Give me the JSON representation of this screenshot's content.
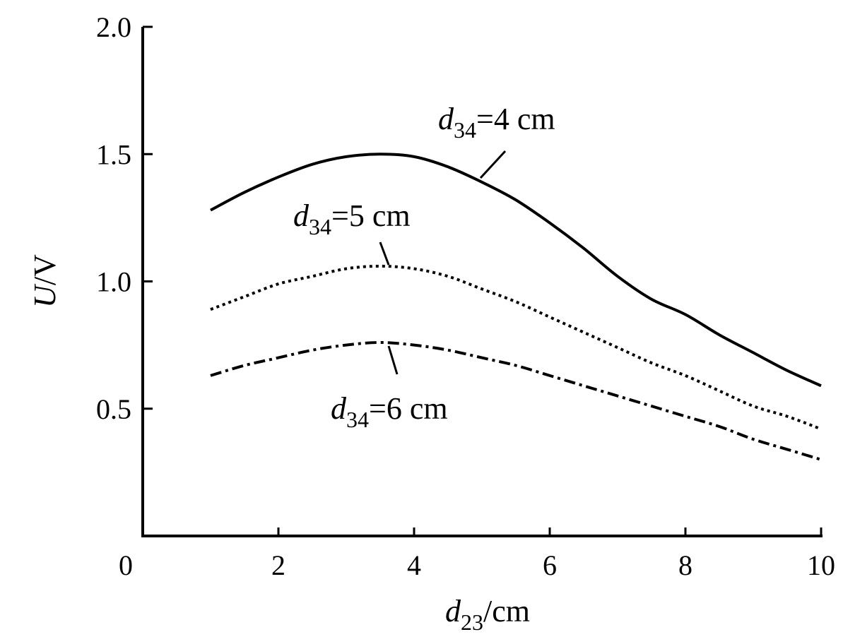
{
  "chart_data": {
    "type": "line",
    "xlabel": {
      "main": "d",
      "sub": "23",
      "unit": "/cm"
    },
    "ylabel": {
      "main": "U",
      "unit": "/V"
    },
    "xlim": [
      0,
      10
    ],
    "ylim": [
      0,
      2.0
    ],
    "x_ticks": [
      0,
      2,
      4,
      6,
      8,
      10
    ],
    "x_tick_labels": [
      "0",
      "2",
      "4",
      "6",
      "8",
      "10"
    ],
    "y_ticks": [
      0.5,
      1.0,
      1.5,
      2.0
    ],
    "y_tick_labels": [
      "0.5",
      "1.0",
      "1.5",
      "2.0"
    ],
    "grid": false,
    "x": [
      1.0,
      1.5,
      2.0,
      2.5,
      3.0,
      3.5,
      4.0,
      4.5,
      5.0,
      5.5,
      6.0,
      6.5,
      7.0,
      7.5,
      8.0,
      8.5,
      9.0,
      9.5,
      10.0
    ],
    "series": [
      {
        "name": "d34=4 cm",
        "style": "solid",
        "values": [
          1.28,
          1.35,
          1.41,
          1.46,
          1.49,
          1.5,
          1.49,
          1.45,
          1.39,
          1.32,
          1.23,
          1.13,
          1.02,
          0.93,
          0.87,
          0.79,
          0.72,
          0.65,
          0.59
        ]
      },
      {
        "name": "d34=5 cm",
        "style": "dotted",
        "values": [
          0.89,
          0.94,
          0.99,
          1.02,
          1.05,
          1.06,
          1.05,
          1.02,
          0.97,
          0.92,
          0.86,
          0.8,
          0.74,
          0.68,
          0.63,
          0.57,
          0.51,
          0.47,
          0.42
        ]
      },
      {
        "name": "d34=6 cm",
        "style": "dash-dot",
        "values": [
          0.63,
          0.67,
          0.7,
          0.73,
          0.75,
          0.76,
          0.75,
          0.73,
          0.7,
          0.67,
          0.63,
          0.59,
          0.55,
          0.51,
          0.47,
          0.43,
          0.38,
          0.34,
          0.3
        ]
      }
    ],
    "annotations": [
      {
        "series": 0,
        "main": "d",
        "sub": "34",
        "rest": "=4 cm"
      },
      {
        "series": 1,
        "main": "d",
        "sub": "34",
        "rest": "=5 cm"
      },
      {
        "series": 2,
        "main": "d",
        "sub": "34",
        "rest": "=6 cm"
      }
    ]
  }
}
